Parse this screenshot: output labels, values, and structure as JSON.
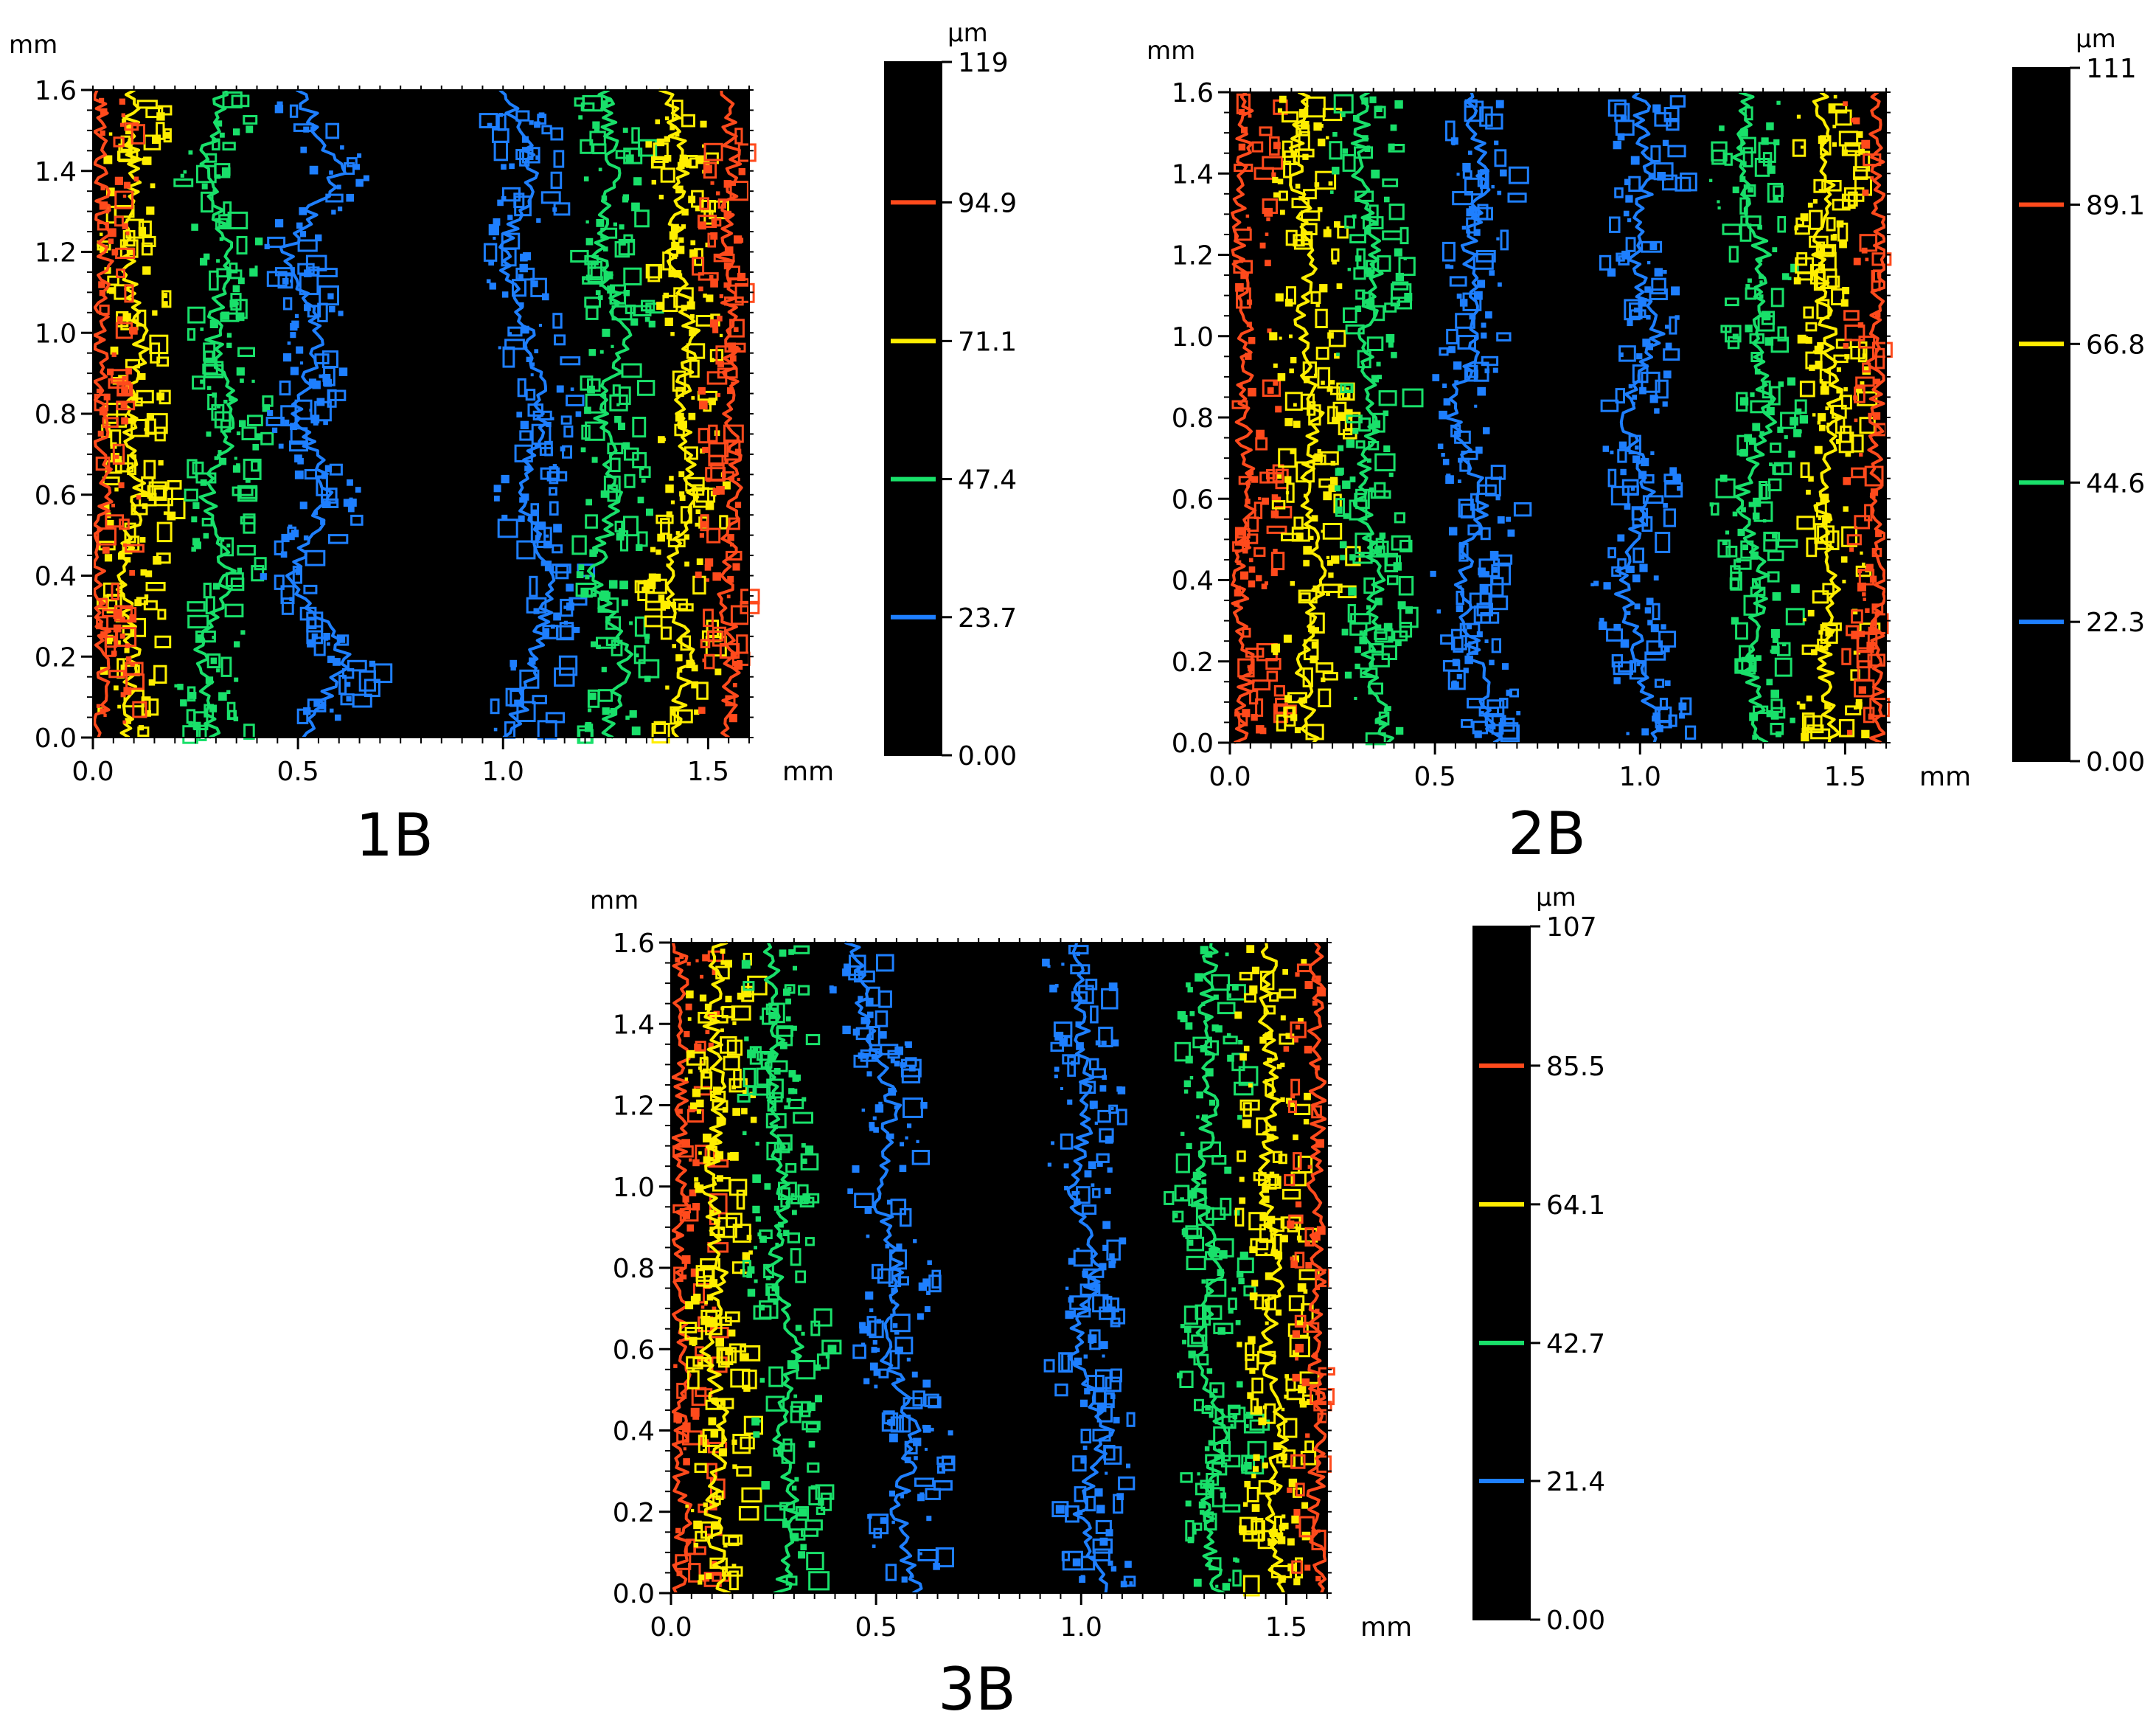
{
  "chart_data": [
    {
      "type": "heatmap",
      "title": "1B",
      "x_unit": "mm",
      "y_unit": "mm",
      "xlim": [
        0,
        1.6
      ],
      "ylim": [
        0,
        1.6
      ],
      "x_ticks": [
        {
          "v": 0,
          "label": "0.0"
        },
        {
          "v": 0.5,
          "label": "0.5"
        },
        {
          "v": 1.0,
          "label": "1.0"
        },
        {
          "v": 1.5,
          "label": "1.5"
        }
      ],
      "y_ticks": [
        {
          "v": 0,
          "label": "0.0"
        },
        {
          "v": 0.2,
          "label": "0.2"
        },
        {
          "v": 0.4,
          "label": "0.4"
        },
        {
          "v": 0.6,
          "label": "0.6"
        },
        {
          "v": 0.8,
          "label": "0.8"
        },
        {
          "v": 1.0,
          "label": "1.0"
        },
        {
          "v": 1.2,
          "label": "1.2"
        },
        {
          "v": 1.4,
          "label": "1.4"
        },
        {
          "v": 1.6,
          "label": "1.6"
        }
      ],
      "colorbar": {
        "unit": "µm",
        "min": 0,
        "max": 119,
        "min_label": "0.00",
        "max_label": "119",
        "levels": [
          {
            "value": 23.7,
            "label": "23.7",
            "color": "#1e7fff"
          },
          {
            "value": 47.4,
            "label": "47.4",
            "color": "#19e06a"
          },
          {
            "value": 71.1,
            "label": "71.1",
            "color": "#ffee00"
          },
          {
            "value": 94.9,
            "label": "94.9",
            "color": "#ff4a1c"
          }
        ]
      },
      "contours": [
        {
          "level": 71.1,
          "side": "left",
          "x": [
            0.08,
            0.1,
            0.07,
            0.11,
            0.09,
            0.12,
            0.08,
            0.1,
            0.09
          ]
        },
        {
          "level": 47.4,
          "side": "left",
          "x": [
            0.3,
            0.26,
            0.33,
            0.28,
            0.35,
            0.29,
            0.34,
            0.27,
            0.32
          ]
        },
        {
          "level": 23.7,
          "side": "left",
          "x": [
            0.52,
            0.62,
            0.48,
            0.58,
            0.5,
            0.55,
            0.47,
            0.6,
            0.5
          ]
        },
        {
          "level": 23.7,
          "side": "right",
          "x": [
            1.02,
            1.08,
            1.12,
            1.04,
            1.1,
            1.06,
            1.0,
            1.08,
            1.0
          ]
        },
        {
          "level": 47.4,
          "side": "right",
          "x": [
            1.25,
            1.3,
            1.22,
            1.28,
            1.24,
            1.3,
            1.23,
            1.27,
            1.25
          ]
        },
        {
          "level": 71.1,
          "side": "right",
          "x": [
            1.42,
            1.45,
            1.4,
            1.47,
            1.43,
            1.46,
            1.41,
            1.44,
            1.4
          ]
        },
        {
          "level": 94.9,
          "side": "right",
          "x": [
            1.55,
            1.56,
            1.54,
            1.57,
            1.55,
            1.56,
            1.54,
            1.56,
            1.55
          ]
        },
        {
          "level": 94.9,
          "side": "left",
          "x": [
            0.02,
            0.03,
            0.01,
            0.03,
            0.02,
            0.02,
            0.03,
            0.02,
            0.02
          ]
        }
      ]
    },
    {
      "type": "heatmap",
      "title": "2B",
      "x_unit": "mm",
      "y_unit": "mm",
      "xlim": [
        0,
        1.6
      ],
      "ylim": [
        0,
        1.6
      ],
      "x_ticks": [
        {
          "v": 0,
          "label": "0.0"
        },
        {
          "v": 0.5,
          "label": "0.5"
        },
        {
          "v": 1.0,
          "label": "1.0"
        },
        {
          "v": 1.5,
          "label": "1.5"
        }
      ],
      "y_ticks": [
        {
          "v": 0,
          "label": "0.0"
        },
        {
          "v": 0.2,
          "label": "0.2"
        },
        {
          "v": 0.4,
          "label": "0.4"
        },
        {
          "v": 0.6,
          "label": "0.6"
        },
        {
          "v": 0.8,
          "label": "0.8"
        },
        {
          "v": 1.0,
          "label": "1.0"
        },
        {
          "v": 1.2,
          "label": "1.2"
        },
        {
          "v": 1.4,
          "label": "1.4"
        },
        {
          "v": 1.6,
          "label": "1.6"
        }
      ],
      "colorbar": {
        "unit": "µm",
        "min": 0,
        "max": 111,
        "min_label": "0.00",
        "max_label": "111",
        "levels": [
          {
            "value": 22.3,
            "label": "22.3",
            "color": "#1e7fff"
          },
          {
            "value": 44.6,
            "label": "44.6",
            "color": "#19e06a"
          },
          {
            "value": 66.8,
            "label": "66.8",
            "color": "#ffee00"
          },
          {
            "value": 89.1,
            "label": "89.1",
            "color": "#ff4a1c"
          }
        ]
      },
      "contours": [
        {
          "level": 89.1,
          "side": "left",
          "x": [
            0.03,
            0.04,
            0.02,
            0.05,
            0.03,
            0.04,
            0.02,
            0.03,
            0.04
          ]
        },
        {
          "level": 66.8,
          "side": "left",
          "x": [
            0.2,
            0.17,
            0.22,
            0.18,
            0.21,
            0.17,
            0.2,
            0.16,
            0.18
          ]
        },
        {
          "level": 44.6,
          "side": "left",
          "x": [
            0.38,
            0.34,
            0.36,
            0.32,
            0.35,
            0.33,
            0.36,
            0.31,
            0.33
          ]
        },
        {
          "level": 22.3,
          "side": "left",
          "x": [
            0.65,
            0.6,
            0.56,
            0.62,
            0.54,
            0.6,
            0.58,
            0.62,
            0.58
          ]
        },
        {
          "level": 22.3,
          "side": "right",
          "x": [
            1.05,
            1.0,
            0.95,
            1.02,
            0.96,
            1.04,
            0.98,
            1.02,
            1.0
          ]
        },
        {
          "level": 44.6,
          "side": "right",
          "x": [
            1.3,
            1.26,
            1.3,
            1.24,
            1.32,
            1.27,
            1.3,
            1.24,
            1.26
          ]
        },
        {
          "level": 66.8,
          "side": "right",
          "x": [
            1.47,
            1.45,
            1.48,
            1.44,
            1.48,
            1.46,
            1.43,
            1.46,
            1.44
          ]
        },
        {
          "level": 89.1,
          "side": "right",
          "x": [
            1.58,
            1.57,
            1.59,
            1.57,
            1.58,
            1.57,
            1.59,
            1.58,
            1.57
          ]
        }
      ]
    },
    {
      "type": "heatmap",
      "title": "3B",
      "x_unit": "mm",
      "y_unit": "mm",
      "xlim": [
        0,
        1.6
      ],
      "ylim": [
        0,
        1.6
      ],
      "x_ticks": [
        {
          "v": 0,
          "label": "0.0"
        },
        {
          "v": 0.5,
          "label": "0.5"
        },
        {
          "v": 1.0,
          "label": "1.0"
        },
        {
          "v": 1.5,
          "label": "1.5"
        }
      ],
      "y_ticks": [
        {
          "v": 0,
          "label": "0.0"
        },
        {
          "v": 0.2,
          "label": "0.2"
        },
        {
          "v": 0.4,
          "label": "0.4"
        },
        {
          "v": 0.6,
          "label": "0.6"
        },
        {
          "v": 0.8,
          "label": "0.8"
        },
        {
          "v": 1.0,
          "label": "1.0"
        },
        {
          "v": 1.2,
          "label": "1.2"
        },
        {
          "v": 1.4,
          "label": "1.4"
        },
        {
          "v": 1.6,
          "label": "1.6"
        }
      ],
      "colorbar": {
        "unit": "µm",
        "min": 0,
        "max": 107,
        "min_label": "0.00",
        "max_label": "107",
        "levels": [
          {
            "value": 21.4,
            "label": "21.4",
            "color": "#1e7fff"
          },
          {
            "value": 42.7,
            "label": "42.7",
            "color": "#19e06a"
          },
          {
            "value": 64.1,
            "label": "64.1",
            "color": "#ffee00"
          },
          {
            "value": 85.5,
            "label": "85.5",
            "color": "#ff4a1c"
          }
        ]
      },
      "contours": [
        {
          "level": 85.5,
          "side": "left",
          "x": [
            0.02,
            0.03,
            0.02,
            0.03,
            0.02,
            0.03,
            0.02,
            0.03,
            0.02
          ]
        },
        {
          "level": 64.1,
          "side": "left",
          "x": [
            0.13,
            0.1,
            0.13,
            0.09,
            0.12,
            0.09,
            0.12,
            0.1,
            0.12
          ]
        },
        {
          "level": 42.7,
          "side": "left",
          "x": [
            0.27,
            0.3,
            0.26,
            0.31,
            0.25,
            0.28,
            0.24,
            0.26,
            0.24
          ]
        },
        {
          "level": 21.4,
          "side": "left",
          "x": [
            0.6,
            0.55,
            0.6,
            0.52,
            0.56,
            0.5,
            0.54,
            0.48,
            0.44
          ]
        },
        {
          "level": 21.4,
          "side": "right",
          "x": [
            1.05,
            1.0,
            1.06,
            0.98,
            1.04,
            0.98,
            1.02,
            1.0,
            0.98
          ]
        },
        {
          "level": 42.7,
          "side": "right",
          "x": [
            1.33,
            1.3,
            1.34,
            1.29,
            1.33,
            1.28,
            1.32,
            1.3,
            1.32
          ]
        },
        {
          "level": 64.1,
          "side": "right",
          "x": [
            1.48,
            1.46,
            1.49,
            1.45,
            1.48,
            1.44,
            1.47,
            1.45,
            1.46
          ]
        },
        {
          "level": 85.5,
          "side": "right",
          "x": [
            1.58,
            1.57,
            1.58,
            1.57,
            1.58,
            1.57,
            1.58,
            1.57,
            1.58
          ]
        }
      ]
    }
  ]
}
